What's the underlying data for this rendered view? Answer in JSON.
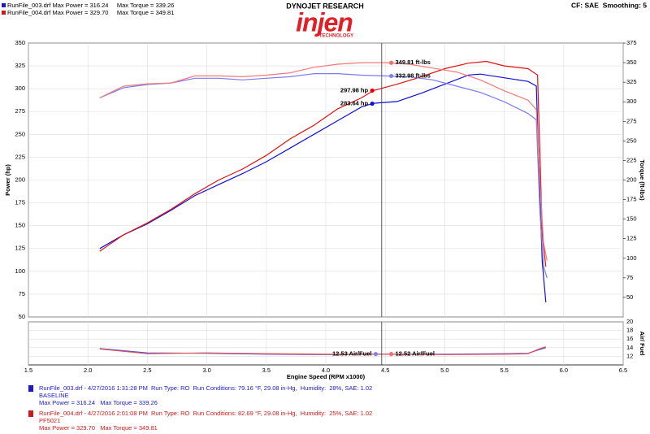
{
  "header": {
    "brand": "DYNOJET RESEARCH",
    "logo": "injen",
    "logo_sub": "TECHNOLOGY",
    "settings": "CF: SAE  Smoothing: 5",
    "files": [
      "RunFile_003.drf Max Power = 316.24     Max Torque = 339.26",
      "RunFile_004.drf Max Power = 329.70     Max Torque = 349.81"
    ]
  },
  "runs": [
    {
      "info": "RunFile_003.drf - 4/27/2016 1:31:28 PM  Run Type: RO  Run Conditions: 79.16 °F, 29.08 in-Hg,  Humidity:  28%, SAE: 1.02",
      "name": "BASELINE",
      "max": "Max Power = 316.24   Max Torque = 339.26"
    },
    {
      "info": "RunFile_004.drf - 4/27/2016 2:01:08 PM  Run Type: RO  Run Conditions: 82.69 °F, 29.08 in-Hg,  Humidity:  25%, SAE: 1.02",
      "name": "PF5021",
      "max": "Max Power = 329.70   Max Torque = 349.81"
    }
  ],
  "chart_data": [
    {
      "type": "line",
      "ylabel": "Power (hp)",
      "y2label": "Torque (ft-lbs)",
      "grid": true,
      "cursor": 4.47,
      "xlim": [
        1.5,
        6.5
      ],
      "xticks": [
        1.5,
        {
          "value": 2,
          "label": "2.0"
        },
        2.5,
        {
          "value": 3,
          "label": "3.0"
        },
        3.5,
        {
          "value": 4,
          "label": "4.0"
        },
        4.5,
        {
          "value": 5,
          "label": "5.0"
        },
        5.5,
        {
          "value": 6,
          "label": "6.0"
        },
        6.5
      ],
      "ylim": [
        50,
        350
      ],
      "yticks": [
        50,
        75,
        100,
        125,
        150,
        175,
        200,
        225,
        250,
        275,
        300,
        325,
        350
      ],
      "y2lim": [
        25,
        375
      ],
      "y2ticks": [
        50,
        75,
        100,
        125,
        150,
        175,
        200,
        225,
        250,
        275,
        300,
        325,
        350,
        375
      ],
      "series": [
        {
          "color": "#1010d8",
          "x": [
            2.1,
            2.3,
            2.5,
            2.7,
            2.9,
            3.1,
            3.3,
            3.5,
            3.7,
            3.9,
            4.1,
            4.3,
            4.4,
            4.6,
            4.8,
            5.0,
            5.2,
            5.3,
            5.5,
            5.7,
            5.77,
            5.8,
            5.82,
            5.85
          ],
          "values": [
            125,
            140,
            152,
            167,
            183,
            195,
            207,
            220,
            235,
            250,
            265,
            280,
            284,
            286,
            295,
            305,
            315,
            316,
            312,
            308,
            303,
            180,
            110,
            66
          ]
        },
        {
          "color": "#e01010",
          "x": [
            2.1,
            2.3,
            2.5,
            2.7,
            2.9,
            3.1,
            3.3,
            3.5,
            3.7,
            3.9,
            4.1,
            4.3,
            4.4,
            4.6,
            4.8,
            5.0,
            5.2,
            5.35,
            5.5,
            5.7,
            5.78,
            5.8,
            5.82,
            5.85
          ],
          "values": [
            122,
            140,
            153,
            168,
            185,
            200,
            212,
            227,
            245,
            260,
            278,
            290,
            298,
            305,
            313,
            322,
            328,
            330,
            325,
            322,
            315,
            230,
            140,
            105
          ]
        },
        {
          "color": "#7a7af2",
          "axis": "y2",
          "x": [
            2.1,
            2.3,
            2.5,
            2.7,
            2.9,
            3.1,
            3.3,
            3.5,
            3.7,
            3.9,
            4.1,
            4.3,
            4.5,
            4.7,
            4.9,
            5.1,
            5.3,
            5.5,
            5.7,
            5.77,
            5.8,
            5.83,
            5.86
          ],
          "values": [
            305,
            318,
            322,
            324,
            330,
            330,
            328,
            330,
            332,
            336,
            336,
            334,
            333,
            332,
            328,
            320,
            312,
            300,
            285,
            277,
            160,
            90,
            75
          ]
        },
        {
          "color": "#f27a7a",
          "axis": "y2",
          "x": [
            2.1,
            2.3,
            2.5,
            2.7,
            2.9,
            3.1,
            3.3,
            3.5,
            3.7,
            3.9,
            4.1,
            4.3,
            4.5,
            4.7,
            4.9,
            5.1,
            5.3,
            5.5,
            5.7,
            5.77,
            5.8,
            5.83,
            5.86
          ],
          "values": [
            305,
            320,
            323,
            324,
            333,
            333,
            332,
            334,
            337,
            344,
            348,
            350,
            350,
            348,
            343,
            338,
            328,
            314,
            302,
            290,
            200,
            120,
            97
          ]
        }
      ],
      "annotations": [
        {
          "x": 4.55,
          "value": 349.81,
          "label": "349.81 ft-lbs",
          "axis": "y2",
          "color": "#f07070"
        },
        {
          "x": 4.55,
          "value": 332.98,
          "label": "332.98 ft-lbs",
          "axis": "y2",
          "color": "#8080f0"
        },
        {
          "x": 4.39,
          "value": 297.98,
          "label": "297.98 hp",
          "color": "#e00000"
        },
        {
          "x": 4.39,
          "value": 283.64,
          "label": "283.64 hp",
          "color": "#1010c8"
        }
      ]
    },
    {
      "type": "line",
      "xlabel": "Engine Speed (RPM x1000)",
      "ylabel": "Air/ Fuel",
      "grid": true,
      "cursor": 4.47,
      "xlim": [
        1.5,
        6.5
      ],
      "xticks": [
        1.5,
        {
          "value": 2,
          "label": "2.0"
        },
        2.5,
        {
          "value": 3,
          "label": "3.0"
        },
        3.5,
        {
          "value": 4,
          "label": "4.0"
        },
        4.5,
        {
          "value": 5,
          "label": "5.0"
        },
        5.5,
        {
          "value": 6,
          "label": "6.0"
        },
        6.5
      ],
      "ylim": [
        10,
        20
      ],
      "yticks": [
        12,
        14,
        16,
        18,
        20
      ],
      "series": [
        {
          "color": "#5050e0",
          "x": [
            2.1,
            2.5,
            3.0,
            3.5,
            4.0,
            4.5,
            5.0,
            5.5,
            5.7,
            5.8,
            5.85
          ],
          "values": [
            13.8,
            12.8,
            12.7,
            12.5,
            12.4,
            12.5,
            12.5,
            12.6,
            12.7,
            13.6,
            14.0
          ]
        },
        {
          "color": "#e05050",
          "x": [
            2.1,
            2.5,
            3.0,
            3.5,
            4.0,
            4.5,
            5.0,
            5.5,
            5.7,
            5.8,
            5.85
          ],
          "values": [
            13.7,
            12.6,
            12.8,
            12.6,
            12.5,
            12.5,
            12.4,
            12.5,
            12.6,
            13.8,
            14.2
          ]
        }
      ],
      "annotations": [
        {
          "x": 4.42,
          "value": 12.53,
          "label": "12.53 Air/Fuel",
          "color": "#8080f0"
        },
        {
          "x": 4.55,
          "value": 12.52,
          "label": "12.52 Air/Fuel",
          "color": "#f07070"
        }
      ]
    }
  ]
}
